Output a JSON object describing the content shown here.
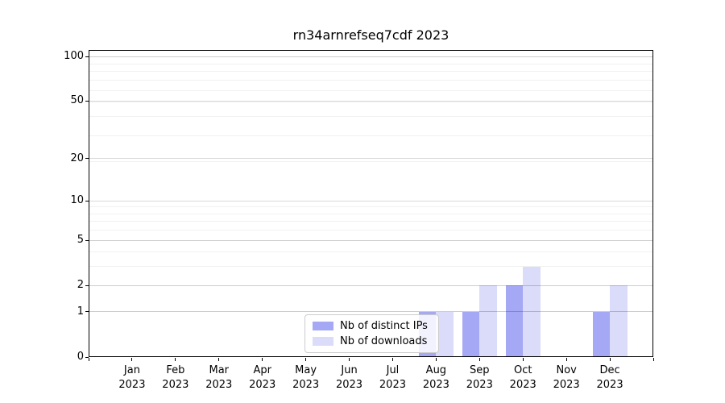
{
  "figure": {
    "title": "rn34arnrefseq7cdf 2023"
  },
  "chart_data": {
    "type": "bar",
    "title": "rn34arnrefseq7cdf 2023",
    "categories": [
      "Jan 2023",
      "Feb 2023",
      "Mar 2023",
      "Apr 2023",
      "May 2023",
      "Jun 2023",
      "Jul 2023",
      "Aug 2023",
      "Sep 2023",
      "Oct 2023",
      "Nov 2023",
      "Dec 2023"
    ],
    "series": [
      {
        "name": "Nb of distinct IPs",
        "color": "#a5a8f4",
        "values": [
          0,
          0,
          0,
          0,
          0,
          0,
          0,
          1,
          1,
          2,
          0,
          1
        ]
      },
      {
        "name": "Nb of downloads",
        "color": "#dadcfa",
        "values": [
          0,
          0,
          0,
          0,
          0,
          0,
          0,
          1,
          2,
          3,
          0,
          2
        ]
      }
    ],
    "xlabel": "",
    "ylabel": "",
    "yticks": [
      0,
      1,
      2,
      5,
      10,
      20,
      50,
      100
    ],
    "minor_ytick_values": [
      1,
      2,
      3,
      4,
      5,
      6,
      7,
      8,
      9,
      19,
      29,
      39,
      49,
      59,
      69,
      79,
      89,
      99
    ],
    "y_scale": "log10(value+1)",
    "ylim": [
      0,
      110
    ],
    "grid": true,
    "legend_position": "lower center-left inside plot",
    "colors": {
      "axis": "#000000",
      "major_grid": "#d9d9d9",
      "minor_grid": "#efefef",
      "background": "#ffffff"
    }
  }
}
